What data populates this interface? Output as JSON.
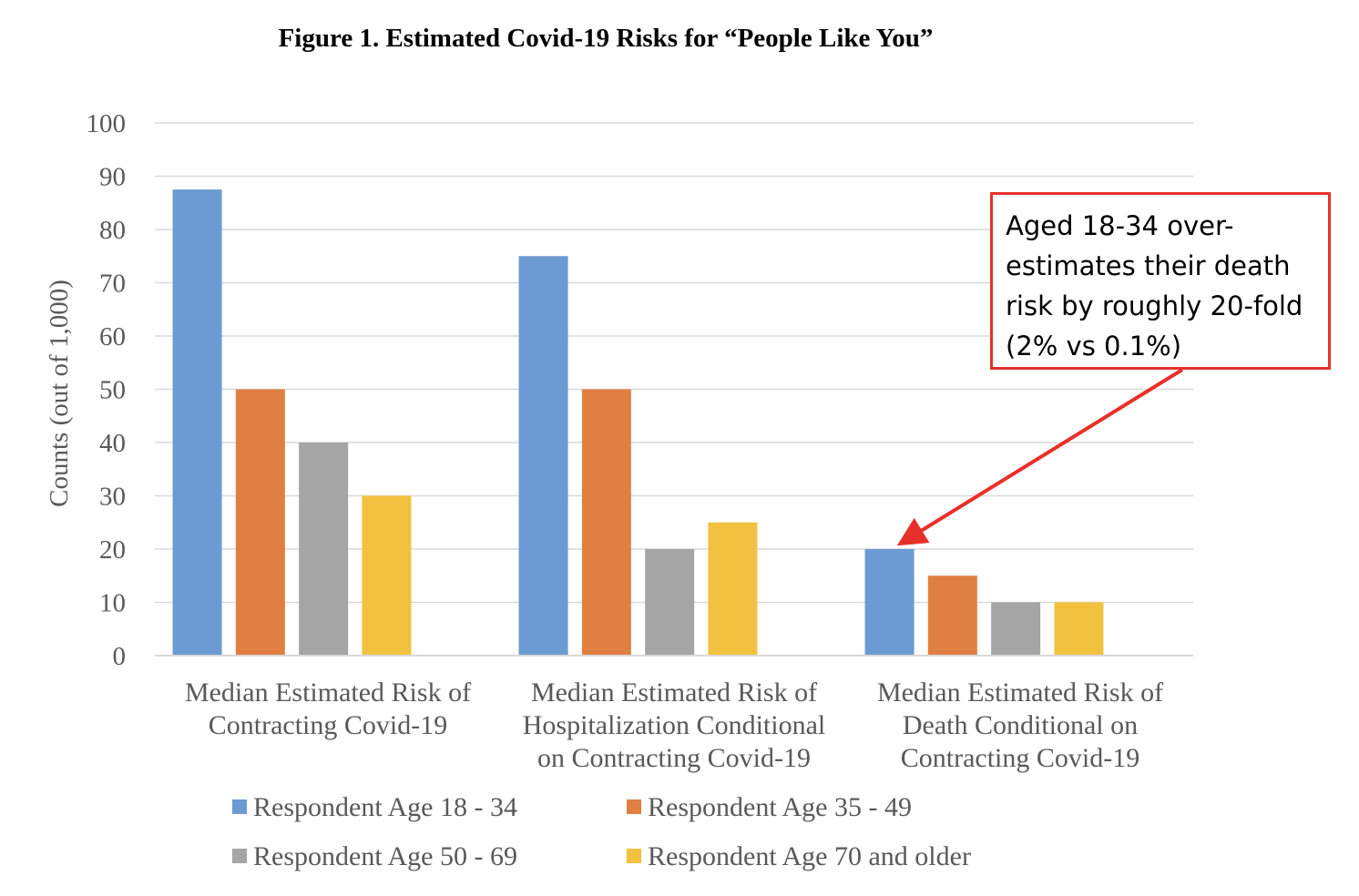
{
  "chart_data": {
    "type": "bar",
    "title": "Figure 1. Estimated Covid-19 Risks for “People Like You”",
    "ylabel": "Counts (out of 1,000)",
    "xlabel": "",
    "ylim": [
      0,
      100
    ],
    "yticks": [
      "0",
      "10",
      "20",
      "30",
      "40",
      "50",
      "60",
      "70",
      "80",
      "90",
      "100"
    ],
    "grid": true,
    "legend_position": "bottom",
    "categories": [
      [
        "Median Estimated Risk of",
        "Contracting Covid-19"
      ],
      [
        "Median Estimated Risk of",
        "Hospitalization Conditional",
        "on Contracting Covid-19"
      ],
      [
        "Median Estimated Risk of",
        "Death Conditional on",
        "Contracting Covid-19"
      ]
    ],
    "series": [
      {
        "name": "Respondent Age 18 - 34",
        "color": "#6b9bd2",
        "values": [
          87.5,
          75,
          20
        ]
      },
      {
        "name": "Respondent Age 35 - 49",
        "color": "#e07f42",
        "values": [
          50,
          50,
          15
        ]
      },
      {
        "name": "Respondent Age 50 - 69",
        "color": "#a5a5a5",
        "values": [
          40,
          20,
          10
        ]
      },
      {
        "name": "Respondent Age 70 and older",
        "color": "#f2c140",
        "values": [
          30,
          25,
          10
        ]
      }
    ],
    "annotation": {
      "text": "Aged 18-34 over-\nestimates their death\nrisk by roughly 20-fold\n(2% vs 0.1%)",
      "color": "#e8302a",
      "target_series": 0,
      "target_category": 2
    }
  }
}
